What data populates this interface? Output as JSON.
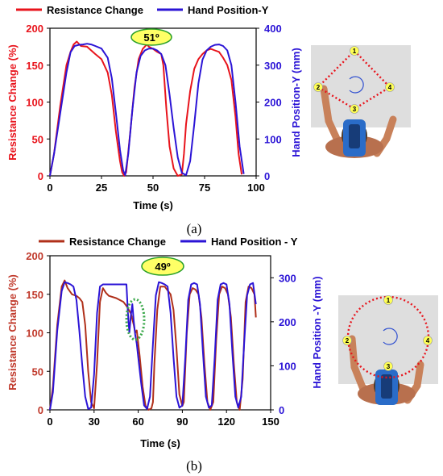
{
  "colors": {
    "resistance_a": "#e8141c",
    "resistance_b": "#b0301a",
    "position": "#2b14d6",
    "badge_fill": "#ffff66",
    "badge_stroke": "#2aa02a",
    "path_dots": "#e8141c",
    "highlight_ellipse": "#3aa84a"
  },
  "chart_data": [
    {
      "type": "line",
      "panel_label": "(a)",
      "angle_badge": "51º",
      "xlabel": "Time (s)",
      "ylabel_left": "Resistance Change (%)",
      "ylabel_right": "Hand Position-Y (mm)",
      "xlim": [
        0,
        100
      ],
      "ylim_left": [
        0,
        200
      ],
      "ylim_right": [
        0,
        400
      ],
      "xticks": [
        0,
        25,
        50,
        75,
        100
      ],
      "yticks_left": [
        0,
        50,
        100,
        150,
        200
      ],
      "yticks_right": [
        0,
        100,
        200,
        300,
        400
      ],
      "grid": false,
      "legend_position": "top-left (above plot)",
      "series": [
        {
          "name": "Resistance Change",
          "axis": "left",
          "color_key": "resistance_a",
          "x": [
            0,
            2,
            5,
            8,
            10,
            11.5,
            13,
            15,
            18,
            20,
            22,
            25,
            28,
            30,
            32,
            34,
            35,
            36,
            37,
            39,
            41,
            43,
            45,
            47,
            48,
            50,
            52,
            54,
            55,
            56.5,
            58,
            60,
            62,
            64,
            65,
            66,
            68,
            70,
            72,
            74,
            76,
            78,
            80,
            82,
            84,
            86,
            88,
            90,
            91.5,
            93
          ],
          "y": [
            0,
            30,
            95,
            150,
            168,
            178,
            182,
            176,
            175,
            170,
            165,
            158,
            140,
            110,
            60,
            20,
            5,
            0,
            5,
            60,
            120,
            158,
            172,
            178,
            175,
            172,
            168,
            165,
            150,
            90,
            40,
            10,
            0,
            2,
            30,
            70,
            115,
            145,
            158,
            165,
            170,
            172,
            170,
            168,
            160,
            150,
            130,
            80,
            30,
            2
          ]
        },
        {
          "name": "Hand Position-Y",
          "axis": "right",
          "color_key": "position",
          "x": [
            0,
            2,
            5,
            8,
            10,
            12,
            14,
            16,
            18,
            20,
            22,
            25,
            28,
            30,
            32,
            34,
            35.5,
            36.5,
            38,
            40,
            42,
            44,
            46,
            48,
            50,
            52,
            54,
            56,
            58,
            60,
            62,
            64,
            66,
            68,
            70,
            72,
            74,
            76,
            78,
            80,
            82,
            84,
            86,
            88,
            90,
            92,
            94
          ],
          "y": [
            0,
            60,
            170,
            280,
            335,
            352,
            355,
            356,
            358,
            356,
            352,
            345,
            320,
            265,
            170,
            70,
            15,
            2,
            60,
            180,
            280,
            325,
            340,
            345,
            345,
            340,
            330,
            300,
            220,
            130,
            50,
            8,
            2,
            40,
            140,
            250,
            315,
            340,
            350,
            355,
            356,
            352,
            340,
            300,
            200,
            80,
            5
          ]
        }
      ],
      "inset": {
        "type": "diamond-path",
        "points": [
          "1",
          "2",
          "3",
          "4"
        ]
      }
    },
    {
      "type": "line",
      "panel_label": "(b)",
      "angle_badge": "49º",
      "xlabel": "Time (s)",
      "ylabel_left": "Resistance Change (%)",
      "ylabel_right": "Hand Position -Y (mm)",
      "xlim": [
        0,
        150
      ],
      "ylim_left": [
        0,
        200
      ],
      "ylim_right": [
        0,
        350
      ],
      "xticks": [
        0,
        30,
        60,
        90,
        120,
        150
      ],
      "yticks_left": [
        0,
        50,
        100,
        150,
        200
      ],
      "yticks_right": [
        0,
        100,
        200,
        300
      ],
      "grid": false,
      "legend_position": "top (above plot)",
      "series": [
        {
          "name": "Resistance Change",
          "axis": "left",
          "color_key": "resistance_b",
          "x": [
            0,
            2,
            5,
            8,
            10,
            12,
            15,
            18,
            20,
            22,
            24,
            26,
            28,
            30,
            32,
            34,
            36,
            38,
            40,
            45,
            50,
            52,
            55,
            57,
            58,
            59,
            61,
            63,
            65,
            67,
            69,
            70,
            71,
            73,
            75,
            78,
            80,
            82,
            84,
            86,
            88,
            90,
            91,
            93,
            95,
            97,
            99,
            101,
            103,
            105,
            107,
            109,
            111,
            113,
            115,
            117,
            119,
            121,
            123,
            125,
            127,
            129,
            131,
            133,
            135,
            137,
            139,
            140
          ],
          "y": [
            0,
            30,
            110,
            160,
            168,
            158,
            150,
            148,
            145,
            140,
            110,
            50,
            10,
            2,
            60,
            140,
            158,
            152,
            148,
            145,
            140,
            135,
            125,
            110,
            100,
            103,
            70,
            30,
            5,
            0,
            2,
            10,
            60,
            130,
            160,
            160,
            155,
            150,
            130,
            80,
            20,
            5,
            10,
            100,
            150,
            158,
            156,
            150,
            120,
            60,
            10,
            0,
            10,
            90,
            150,
            160,
            158,
            150,
            120,
            60,
            10,
            0,
            40,
            140,
            160,
            158,
            150,
            120
          ]
        },
        {
          "name": "Hand Position - Y",
          "axis": "right",
          "color_key": "position",
          "x": [
            0,
            2,
            5,
            8,
            10,
            12,
            14,
            16,
            18,
            20,
            22,
            24,
            26,
            28,
            30,
            32,
            34,
            36,
            38,
            40,
            45,
            50,
            52,
            53,
            54,
            55,
            56,
            57,
            58,
            59,
            60,
            62,
            64,
            66,
            68,
            70,
            72,
            74,
            76,
            78,
            80,
            82,
            84,
            86,
            88,
            90,
            92,
            94,
            96,
            98,
            100,
            102,
            104,
            106,
            108,
            110,
            112,
            114,
            116,
            118,
            120,
            122,
            124,
            126,
            128,
            130,
            132,
            134,
            136,
            138,
            140
          ],
          "y": [
            0,
            40,
            180,
            270,
            290,
            288,
            285,
            280,
            250,
            180,
            100,
            30,
            2,
            5,
            80,
            220,
            280,
            285,
            285,
            285,
            285,
            285,
            285,
            220,
            175,
            215,
            240,
            200,
            170,
            150,
            120,
            60,
            10,
            2,
            30,
            150,
            260,
            290,
            288,
            285,
            280,
            220,
            120,
            30,
            5,
            10,
            120,
            250,
            285,
            288,
            285,
            240,
            130,
            30,
            5,
            10,
            120,
            250,
            285,
            288,
            285,
            240,
            130,
            30,
            5,
            30,
            150,
            260,
            285,
            288,
            240
          ]
        }
      ],
      "inset": {
        "type": "circle-path",
        "points": [
          "1",
          "2",
          "3",
          "4"
        ]
      }
    }
  ]
}
